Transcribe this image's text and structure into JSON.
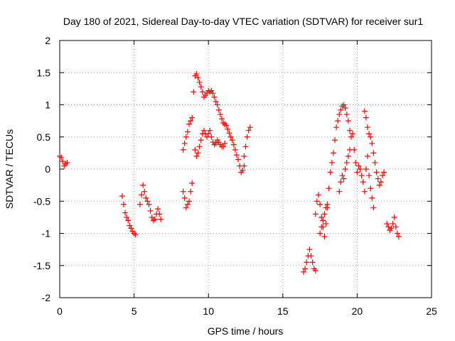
{
  "chart_data": {
    "type": "scatter",
    "title": "Day 180 of 2021, Sidereal Day-to-day VTEC variation (SDTVAR) for receiver sur1",
    "xlabel": "GPS time / hours",
    "ylabel": "SDTVAR / TECUs",
    "xlim": [
      0,
      25
    ],
    "ylim": [
      -2,
      2
    ],
    "xticks": [
      0,
      5,
      10,
      15,
      20,
      25
    ],
    "xtick_labels": [
      "0",
      "5",
      "10",
      "15",
      "20",
      "25"
    ],
    "yticks": [
      -2,
      -1.5,
      -1,
      -0.5,
      0,
      0.5,
      1,
      1.5,
      2
    ],
    "ytick_labels": [
      "-2",
      "-1.5",
      "-1",
      "-0.5",
      "0",
      "0.5",
      "1",
      "1.5",
      "2"
    ],
    "grid": true,
    "marker": "+",
    "marker_color": "#ff0000",
    "series_name": "SDTVAR",
    "segments": [
      {
        "x": [
          0.0,
          0.1,
          0.2,
          0.3,
          0.4,
          0.5
        ],
        "y": [
          0.2,
          0.18,
          0.12,
          0.05,
          0.08,
          0.1
        ]
      },
      {
        "x": [
          4.2,
          4.3,
          4.4,
          4.5,
          4.6,
          4.7,
          4.8,
          4.9,
          5.0,
          5.1
        ],
        "y": [
          -0.42,
          -0.55,
          -0.68,
          -0.75,
          -0.8,
          -0.88,
          -0.92,
          -0.97,
          -1.0,
          -1.02
        ]
      },
      {
        "x": [
          5.4,
          5.5,
          5.6,
          5.7,
          5.8,
          5.9,
          6.0,
          6.1,
          6.2,
          6.3,
          6.4,
          6.5,
          6.6,
          6.7,
          6.8
        ],
        "y": [
          -0.55,
          -0.4,
          -0.25,
          -0.35,
          -0.45,
          -0.5,
          -0.55,
          -0.65,
          -0.75,
          -0.8,
          -0.78,
          -0.7,
          -0.62,
          -0.7,
          -0.78
        ]
      },
      {
        "x": [
          8.3,
          8.4,
          8.5,
          8.6,
          8.7,
          8.8,
          8.9
        ],
        "y": [
          -0.35,
          -0.45,
          -0.6,
          -0.55,
          -0.5,
          -0.35,
          -0.22
        ]
      },
      {
        "x": [
          8.3,
          8.4,
          8.5,
          8.6,
          8.7,
          8.8,
          8.9
        ],
        "y": [
          0.3,
          0.4,
          0.5,
          0.58,
          0.7,
          0.75,
          0.8
        ]
      },
      {
        "x": [
          9.0,
          9.1,
          9.2,
          9.3,
          9.4,
          9.5,
          9.6,
          9.7,
          9.8,
          9.9,
          10.0,
          10.1,
          10.2,
          10.3,
          10.4,
          10.5,
          10.6,
          10.7,
          10.8,
          10.9,
          11.0,
          11.1,
          11.2,
          11.3,
          11.4,
          11.5,
          11.6,
          11.7,
          11.8,
          11.9,
          12.0,
          12.1,
          12.2,
          12.3,
          12.4
        ],
        "y": [
          1.2,
          1.45,
          1.48,
          1.42,
          1.35,
          1.28,
          1.2,
          1.12,
          1.15,
          1.18,
          1.22,
          1.2,
          1.22,
          1.18,
          1.12,
          1.05,
          1.0,
          0.92,
          0.85,
          0.78,
          0.72,
          0.7,
          0.68,
          0.62,
          0.56,
          0.5,
          0.45,
          0.38,
          0.3,
          0.22,
          0.15,
          0.05,
          -0.05,
          -0.02,
          0.05
        ]
      },
      {
        "x": [
          9.1,
          9.2,
          9.3,
          9.4,
          9.5,
          9.6,
          9.7,
          9.8,
          9.9,
          10.0,
          10.1,
          10.2,
          10.3,
          10.4,
          10.5,
          10.6,
          10.7,
          10.8,
          10.9,
          11.0,
          11.1
        ],
        "y": [
          0.3,
          0.2,
          0.25,
          0.35,
          0.45,
          0.55,
          0.6,
          0.55,
          0.5,
          0.55,
          0.6,
          0.5,
          0.42,
          0.38,
          0.4,
          0.45,
          0.42,
          0.38,
          0.35,
          0.35,
          0.4
        ]
      },
      {
        "x": [
          12.4,
          12.5,
          12.6,
          12.7,
          12.8
        ],
        "y": [
          0.2,
          0.35,
          0.5,
          0.6,
          0.65
        ]
      },
      {
        "x": [
          16.4,
          16.5,
          16.6,
          16.7,
          16.8,
          16.9,
          17.0,
          17.1,
          17.2
        ],
        "y": [
          -1.6,
          -1.55,
          -1.45,
          -1.35,
          -1.25,
          -1.35,
          -1.45,
          -1.55,
          -1.58
        ]
      },
      {
        "x": [
          17.2,
          17.3,
          17.4,
          17.5,
          17.6,
          17.7,
          17.8,
          17.9,
          18.0,
          18.1,
          18.2,
          18.3,
          18.4,
          18.5,
          18.6,
          18.7,
          18.8,
          18.9,
          19.0,
          19.1,
          19.2,
          19.3,
          19.4,
          19.5
        ],
        "y": [
          -0.7,
          -0.5,
          -0.4,
          -0.55,
          -0.75,
          -0.9,
          -1.05,
          -0.85,
          -0.6,
          -0.3,
          -0.05,
          0.1,
          0.25,
          0.45,
          0.65,
          0.75,
          0.85,
          0.92,
          0.98,
          1.0,
          0.95,
          0.85,
          0.75,
          0.6
        ]
      },
      {
        "x": [
          17.5,
          17.6,
          17.7,
          17.8,
          17.9,
          18.0
        ],
        "y": [
          -1.0,
          -0.9,
          -0.8,
          -0.7,
          -0.6,
          -0.55
        ]
      },
      {
        "x": [
          18.8,
          18.9,
          19.0,
          19.1,
          19.2,
          19.3,
          19.4,
          19.5,
          19.6,
          19.7,
          19.8,
          19.9,
          20.0,
          20.1,
          20.2,
          20.3,
          20.4,
          20.5,
          20.6,
          20.7,
          20.8,
          20.9,
          21.0,
          21.1
        ],
        "y": [
          -0.35,
          -0.2,
          -0.1,
          -0.15,
          0.0,
          0.1,
          0.2,
          0.3,
          0.5,
          0.55,
          0.3,
          0.1,
          -0.05,
          0.05,
          0.0,
          -0.1,
          -0.2,
          -0.35,
          0.0,
          0.2,
          -0.1,
          -0.3,
          -0.45,
          -0.6
        ]
      },
      {
        "x": [
          20.5,
          20.6,
          20.7,
          20.8,
          20.9,
          21.0,
          21.1,
          21.2,
          21.3,
          21.4,
          21.5,
          21.6,
          21.7,
          21.8
        ],
        "y": [
          0.9,
          0.8,
          0.65,
          0.55,
          0.5,
          0.4,
          0.25,
          0.1,
          -0.05,
          -0.15,
          -0.25,
          -0.2,
          -0.1,
          -0.05
        ]
      },
      {
        "x": [
          22.0,
          22.1,
          22.2,
          22.3,
          22.4,
          22.5,
          22.6,
          22.7,
          22.8
        ],
        "y": [
          -0.85,
          -0.9,
          -0.95,
          -0.92,
          -0.85,
          -0.75,
          -0.9,
          -1.0,
          -1.05
        ]
      }
    ]
  }
}
